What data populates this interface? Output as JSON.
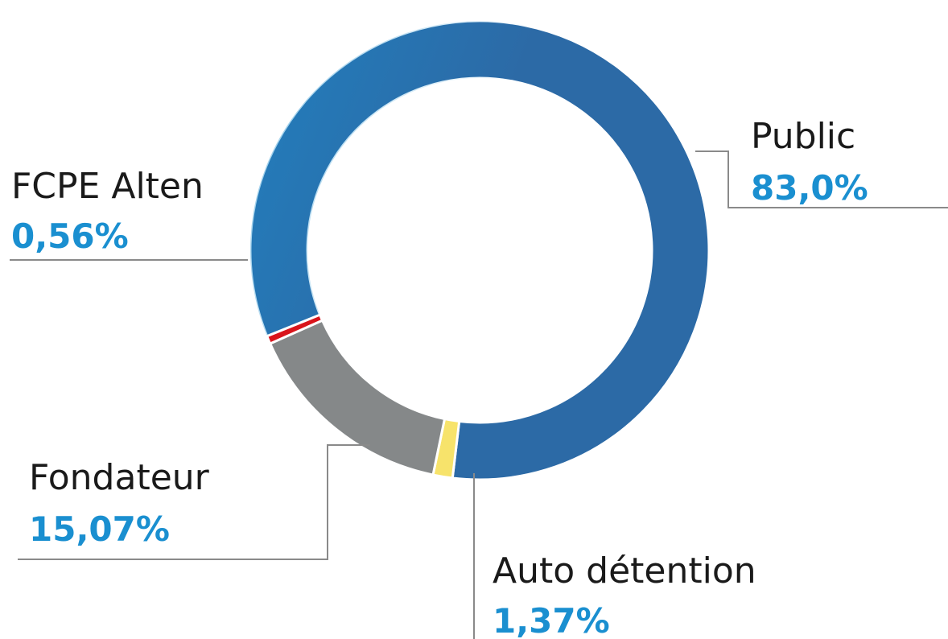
{
  "chart_data": {
    "type": "donut",
    "categories": [
      "Public",
      "Auto détention",
      "Fondateur",
      "FCPE Alten"
    ],
    "values": [
      83.0,
      1.37,
      15.07,
      0.56
    ],
    "value_labels": [
      "83,0%",
      "1,37%",
      "15,07%",
      "0,56%"
    ],
    "colors": [
      "#2c6aa6",
      "#f7e36b",
      "#858889",
      "#d9141b"
    ]
  }
}
